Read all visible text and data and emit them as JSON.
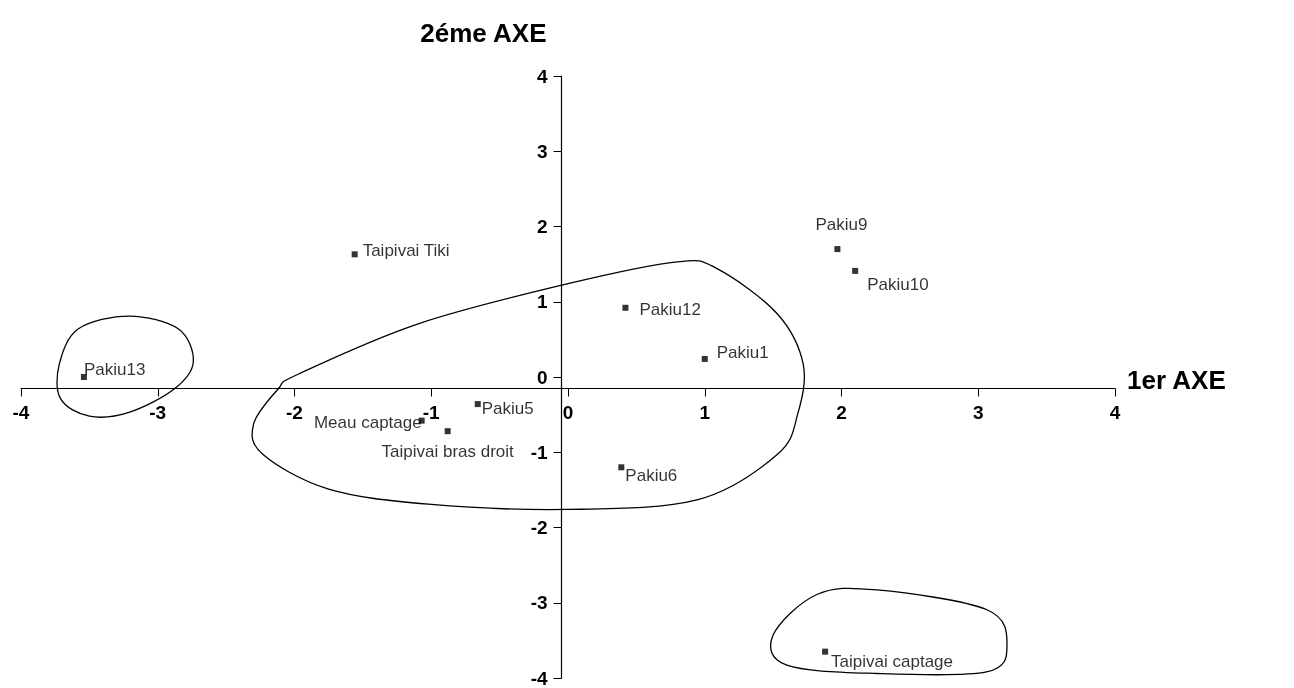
{
  "chart_data": {
    "type": "scatter",
    "xlabel": "1er AXE",
    "ylabel": "2éme AXE",
    "xlim": [
      -4,
      4
    ],
    "xticks": [
      -4,
      -3,
      -2,
      -1,
      0,
      1,
      2,
      3,
      4
    ],
    "ylim": [
      -4,
      4
    ],
    "yticks": [
      -4,
      -3,
      -2,
      -1,
      0,
      1,
      2,
      3,
      4
    ],
    "legend": false,
    "marker": "square",
    "series": [
      {
        "name": "Pakiu13",
        "color": "#000000",
        "x": [
          -3.54
        ],
        "values": [
          0
        ]
      },
      {
        "name": "Taipivai Tiki",
        "color": "#000000",
        "x": [
          -1.56
        ],
        "values": [
          1.63
        ]
      },
      {
        "name": "Meau captage",
        "color": "#000000",
        "x": [
          -1.07
        ],
        "values": [
          -0.58
        ]
      },
      {
        "name": "Taipivai bras droit",
        "color": "#000000",
        "x": [
          -0.88
        ],
        "values": [
          -0.72
        ]
      },
      {
        "name": "Pakiu5",
        "color": "#000000",
        "x": [
          -0.66
        ],
        "values": [
          -0.36
        ]
      },
      {
        "name": "Pakiu6",
        "color": "#000000",
        "x": [
          0.39
        ],
        "values": [
          -1.2
        ]
      },
      {
        "name": "Pakiu12",
        "color": "#000000",
        "x": [
          0.42
        ],
        "values": [
          0.92
        ]
      },
      {
        "name": "Pakiu1",
        "color": "#000000",
        "x": [
          1.0
        ],
        "values": [
          0.24
        ]
      },
      {
        "name": "Pakiu9",
        "color": "#000000",
        "x": [
          1.97
        ],
        "values": [
          1.7
        ]
      },
      {
        "name": "Pakiu10",
        "color": "#000000",
        "x": [
          2.1
        ],
        "values": [
          1.41
        ]
      },
      {
        "name": "Taipivai captage",
        "color": "#000000",
        "x": [
          1.88
        ],
        "values": [
          -3.65
        ]
      }
    ]
  }
}
